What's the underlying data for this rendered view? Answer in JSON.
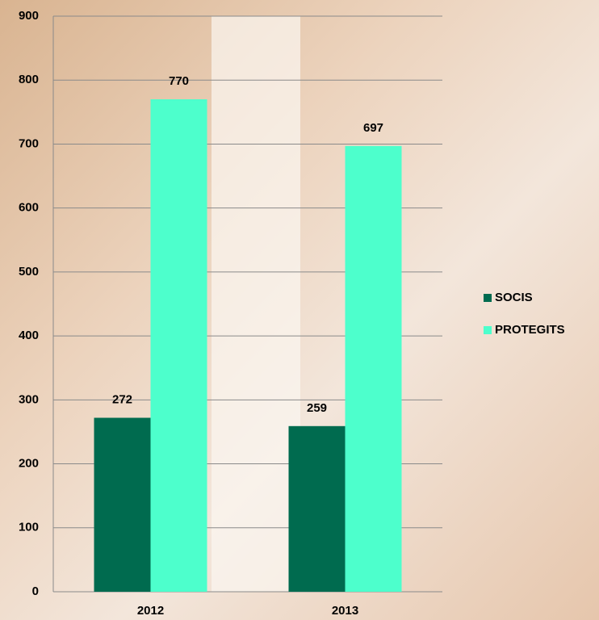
{
  "chart_data": {
    "type": "bar",
    "categories": [
      "2012",
      "2013"
    ],
    "series": [
      {
        "name": "SOCIS",
        "color": "#006b4f",
        "values": [
          272,
          259
        ]
      },
      {
        "name": "PROTEGITS",
        "color": "#4dffcc",
        "values": [
          770,
          697
        ]
      }
    ],
    "ylim": [
      0,
      900
    ],
    "yticks": [
      0,
      100,
      200,
      300,
      400,
      500,
      600,
      700,
      800,
      900
    ],
    "grid": true,
    "legend": "right"
  }
}
